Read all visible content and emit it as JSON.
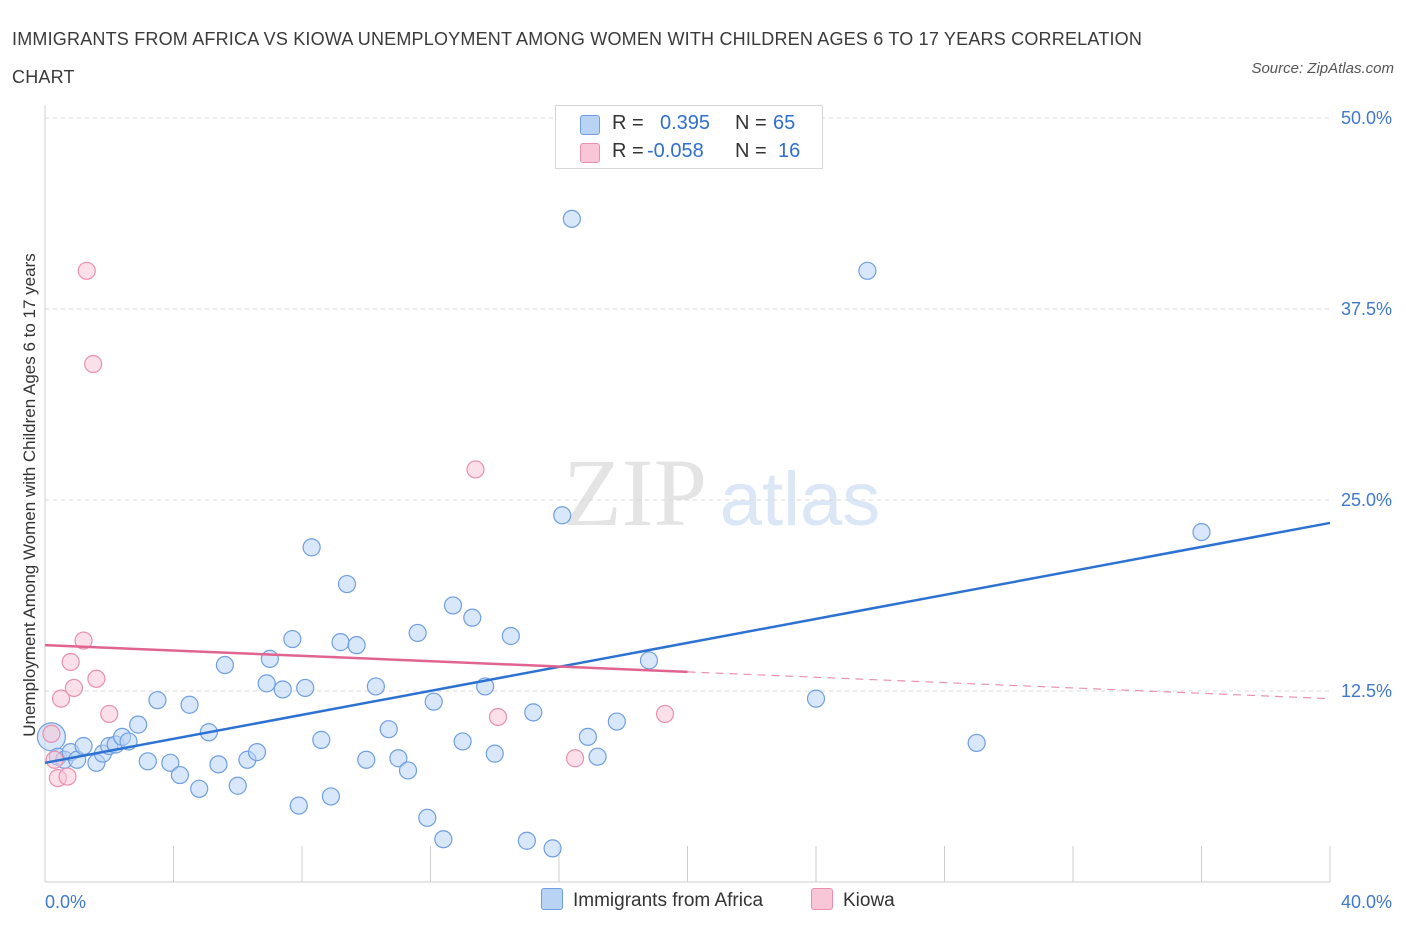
{
  "header": {
    "title": "IMMIGRANTS FROM AFRICA VS KIOWA UNEMPLOYMENT AMONG WOMEN WITH CHILDREN AGES 6 TO 17 YEARS CORRELATION CHART",
    "source": "Source: ZipAtlas.com"
  },
  "watermark": {
    "zip": "ZIP",
    "atlas": "atlas"
  },
  "legend": {
    "rows": [
      {
        "r_label": "R =",
        "r_value": "0.395",
        "n_label": "N =",
        "n_value": "65"
      },
      {
        "r_label": "R =",
        "r_value": "-0.058",
        "n_label": "N =",
        "n_value": "16"
      }
    ]
  },
  "colors": {
    "africa_fill": "#b9d3f5",
    "africa_stroke": "#6f9fe0",
    "africa_line": "#2d72d2",
    "kiowa_fill": "#f8c6d7",
    "kiowa_stroke": "#e98fb0",
    "kiowa_line": "#e0648f",
    "axis_label": "#3f78cf",
    "grid": "#d9d9d9"
  },
  "chart_data": {
    "type": "scatter",
    "title": "IMMIGRANTS FROM AFRICA VS KIOWA UNEMPLOYMENT AMONG WOMEN WITH CHILDREN AGES 6 TO 17 YEARS CORRELATION CHART",
    "xlabel": "",
    "ylabel": "Unemployment Among Women with Children Ages 6 to 17 years",
    "xlim": [
      0,
      40
    ],
    "ylim": [
      0,
      50
    ],
    "x_tick_labels": [
      "0.0%",
      "40.0%"
    ],
    "y_ticks": [
      12.5,
      25,
      37.5,
      50
    ],
    "y_tick_labels": [
      "12.5%",
      "25.0%",
      "37.5%",
      "50.0%"
    ],
    "grid": true,
    "legend_position": "top-center",
    "series": [
      {
        "name": "Immigrants from Africa",
        "r": 0.395,
        "n": 65,
        "trend": {
          "x": [
            0,
            40
          ],
          "y": [
            7.8,
            23.5
          ],
          "dashed_from": null
        },
        "points": [
          [
            0.2,
            9.5
          ],
          [
            0.4,
            8.2
          ],
          [
            0.6,
            8.0
          ],
          [
            0.8,
            8.5
          ],
          [
            1.0,
            8.0
          ],
          [
            1.2,
            8.9
          ],
          [
            1.6,
            7.8
          ],
          [
            1.8,
            8.4
          ],
          [
            2.0,
            8.9
          ],
          [
            2.2,
            9.0
          ],
          [
            2.4,
            9.5
          ],
          [
            2.6,
            9.2
          ],
          [
            2.9,
            10.3
          ],
          [
            3.2,
            7.9
          ],
          [
            3.5,
            11.9
          ],
          [
            3.9,
            7.8
          ],
          [
            4.2,
            7.0
          ],
          [
            4.5,
            11.6
          ],
          [
            4.8,
            6.1
          ],
          [
            5.1,
            9.8
          ],
          [
            5.4,
            7.7
          ],
          [
            5.6,
            14.2
          ],
          [
            6.0,
            6.3
          ],
          [
            6.3,
            8.0
          ],
          [
            6.6,
            8.5
          ],
          [
            6.9,
            13.0
          ],
          [
            7.0,
            14.6
          ],
          [
            7.4,
            12.6
          ],
          [
            7.7,
            15.9
          ],
          [
            7.9,
            5.0
          ],
          [
            8.1,
            12.7
          ],
          [
            8.3,
            21.9
          ],
          [
            8.6,
            9.3
          ],
          [
            8.9,
            5.6
          ],
          [
            9.2,
            15.7
          ],
          [
            9.4,
            19.5
          ],
          [
            9.7,
            15.5
          ],
          [
            10.0,
            8.0
          ],
          [
            10.3,
            12.8
          ],
          [
            10.7,
            10.0
          ],
          [
            11.0,
            8.1
          ],
          [
            11.3,
            7.3
          ],
          [
            11.6,
            16.3
          ],
          [
            11.9,
            4.2
          ],
          [
            12.1,
            11.8
          ],
          [
            12.4,
            2.8
          ],
          [
            12.7,
            18.1
          ],
          [
            13.0,
            9.2
          ],
          [
            13.3,
            17.3
          ],
          [
            13.7,
            12.8
          ],
          [
            14.0,
            8.4
          ],
          [
            14.5,
            16.1
          ],
          [
            15.0,
            2.7
          ],
          [
            15.2,
            11.1
          ],
          [
            15.8,
            2.2
          ],
          [
            16.1,
            24.0
          ],
          [
            16.4,
            43.4
          ],
          [
            16.9,
            9.5
          ],
          [
            17.2,
            8.2
          ],
          [
            17.8,
            10.5
          ],
          [
            18.8,
            14.5
          ],
          [
            24.0,
            12.0
          ],
          [
            25.6,
            40.0
          ],
          [
            29.0,
            9.1
          ],
          [
            36.0,
            22.9
          ]
        ]
      },
      {
        "name": "Kiowa",
        "r": -0.058,
        "n": 16,
        "trend": {
          "x": [
            0,
            40
          ],
          "y": [
            15.5,
            12.0
          ],
          "dashed_from": 20
        },
        "points": [
          [
            0.2,
            9.7
          ],
          [
            0.3,
            8.0
          ],
          [
            0.4,
            6.8
          ],
          [
            0.5,
            12.0
          ],
          [
            0.7,
            6.9
          ],
          [
            0.8,
            14.4
          ],
          [
            0.9,
            12.7
          ],
          [
            1.2,
            15.8
          ],
          [
            1.3,
            40.0
          ],
          [
            1.5,
            33.9
          ],
          [
            1.6,
            13.3
          ],
          [
            2.0,
            11.0
          ],
          [
            13.4,
            27.0
          ],
          [
            14.1,
            10.8
          ],
          [
            16.5,
            8.1
          ],
          [
            19.3,
            11.0
          ]
        ]
      }
    ]
  }
}
